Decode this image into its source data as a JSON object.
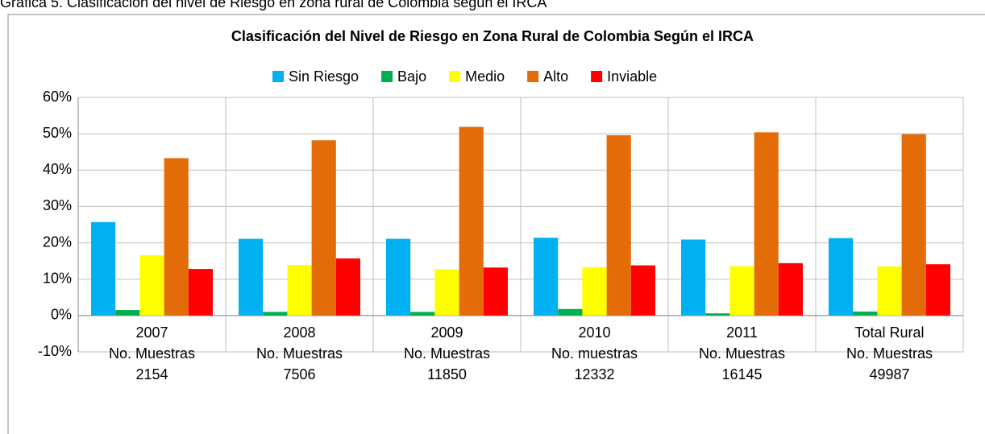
{
  "caption": "Gráfica 5. Clasificación del nivel de Riesgo en zona rural de Colombia según el IRCA",
  "chart_data": {
    "type": "bar",
    "title": "Clasificación del Nivel de Riesgo en Zona Rural de Colombia Según el IRCA",
    "categories": [
      [
        "2007",
        "No. Muestras",
        "2154"
      ],
      [
        "2008",
        "No. Muestras",
        "7506"
      ],
      [
        "2009",
        "No. Muestras",
        "11850"
      ],
      [
        "2010",
        "No. muestras",
        "12332"
      ],
      [
        "2011",
        "No. Muestras",
        "16145"
      ],
      [
        "Total Rural",
        "No. Muestras",
        "49987"
      ]
    ],
    "series": [
      {
        "name": "Sin Riesgo",
        "color": "#00b0f0",
        "values": [
          25.7,
          21.1,
          21.1,
          21.4,
          20.9,
          21.3
        ]
      },
      {
        "name": "Bajo",
        "color": "#00b050",
        "values": [
          1.5,
          1.0,
          1.0,
          1.8,
          0.6,
          1.1
        ]
      },
      {
        "name": "Medio",
        "color": "#ffff00",
        "values": [
          16.6,
          13.9,
          12.7,
          13.3,
          13.6,
          13.5
        ]
      },
      {
        "name": "Alto",
        "color": "#e36c09",
        "values": [
          43.3,
          48.2,
          51.9,
          49.6,
          50.4,
          49.9
        ]
      },
      {
        "name": "Inviable",
        "color": "#ff0000",
        "values": [
          12.8,
          15.7,
          13.2,
          13.8,
          14.4,
          14.1
        ]
      }
    ],
    "ylim": [
      -10,
      60
    ],
    "yticks": [
      {
        "value": -10,
        "label": "-10%"
      },
      {
        "value": 0,
        "label": "0%"
      },
      {
        "value": 10,
        "label": "10%"
      },
      {
        "value": 20,
        "label": "20%"
      },
      {
        "value": 30,
        "label": "30%"
      },
      {
        "value": 40,
        "label": "40%"
      },
      {
        "value": 50,
        "label": "50%"
      },
      {
        "value": 60,
        "label": "60%"
      }
    ],
    "grid": true
  }
}
